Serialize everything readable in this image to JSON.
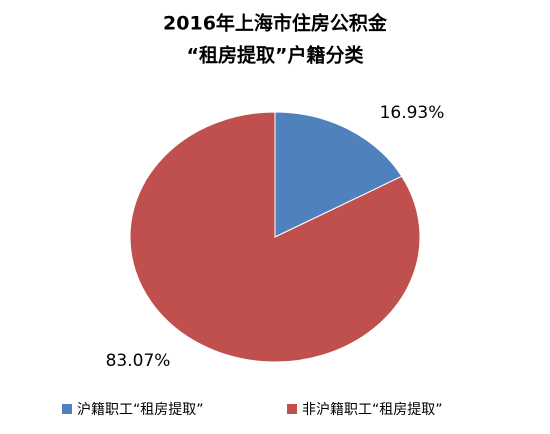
{
  "chart_data": {
    "type": "pie",
    "title": "2016年上海市住房公积金",
    "subtitle": "“租房提取”户籍分类",
    "categories": [
      "沪籍职工“租房提取”",
      "非沪籍职工“租房提取”"
    ],
    "values": [
      16.93,
      83.07
    ],
    "value_labels": [
      "16.93%",
      "83.07%"
    ],
    "colors": [
      "#4f81bd",
      "#c0504d"
    ],
    "legend": "bottom"
  }
}
